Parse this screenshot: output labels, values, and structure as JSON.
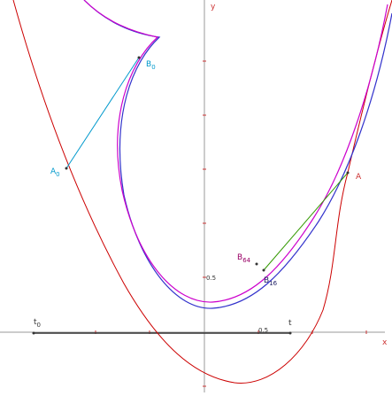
{
  "axes": {
    "y": "y",
    "x": "x",
    "t": "t",
    "y_tick": "0.5",
    "x_tick": "0.5"
  },
  "points": {
    "t0": {
      "base": "t",
      "sub": "0"
    },
    "A": {
      "base": "A",
      "sub": null
    },
    "A0": {
      "base": "A",
      "sub": "0"
    },
    "B0": {
      "base": "B",
      "sub": "0"
    },
    "B16": {
      "base": "B",
      "sub": "16"
    },
    "B64": {
      "base": "B",
      "sub": "64"
    }
  }
}
